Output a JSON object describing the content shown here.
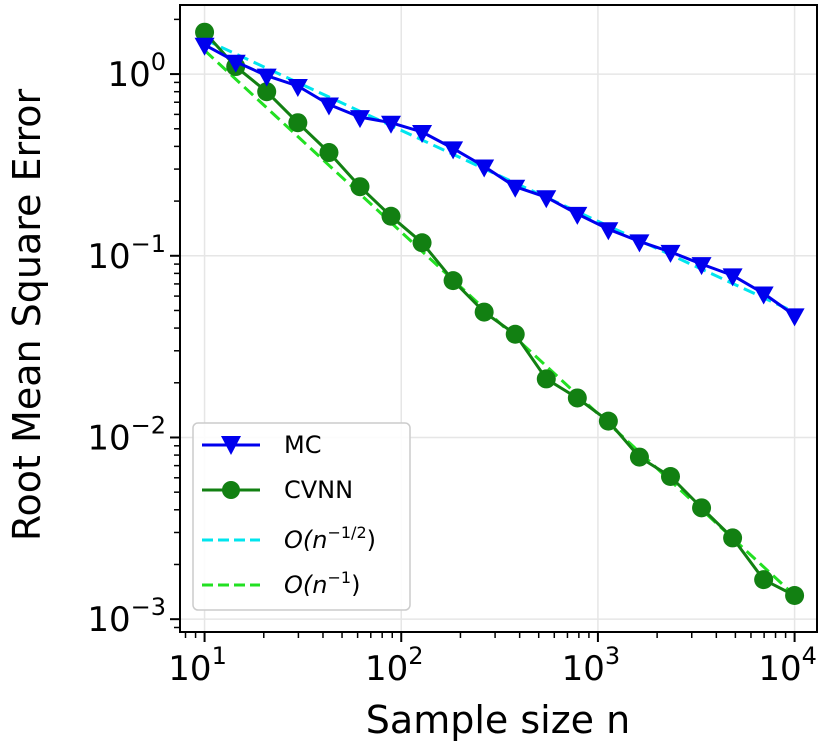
{
  "chart_data": {
    "type": "line",
    "xscale": "log",
    "yscale": "log",
    "xlim": [
      7.5,
      13000
    ],
    "ylim": [
      0.00085,
      2.4
    ],
    "xlabel": "Sample size n",
    "ylabel": "Root Mean Square Error",
    "grid": true,
    "legend_position": "bottom-left",
    "x_ticks": [
      {
        "base": "10",
        "exp": "1",
        "value": 10
      },
      {
        "base": "10",
        "exp": "2",
        "value": 100
      },
      {
        "base": "10",
        "exp": "3",
        "value": 1000
      },
      {
        "base": "10",
        "exp": "4",
        "value": 10000
      }
    ],
    "y_ticks": [
      {
        "base": "10",
        "exp": "0",
        "value": 1
      },
      {
        "base": "10",
        "exp": "−1",
        "value": 0.1
      },
      {
        "base": "10",
        "exp": "−2",
        "value": 0.01
      },
      {
        "base": "10",
        "exp": "−3",
        "value": 0.001
      }
    ],
    "series": [
      {
        "name": "MC",
        "color": "#0000ee",
        "marker": "triangle-down",
        "line": "solid",
        "x": [
          10,
          14.4,
          20.7,
          29.8,
          42.9,
          61.7,
          88.7,
          127.6,
          183.5,
          264,
          379.8,
          546.3,
          785.8,
          1130,
          1626,
          2339,
          3365,
          4840,
          6962,
          10000
        ],
        "y": [
          1.45,
          1.17,
          0.98,
          0.86,
          0.68,
          0.58,
          0.54,
          0.48,
          0.39,
          0.31,
          0.24,
          0.21,
          0.17,
          0.14,
          0.12,
          0.105,
          0.09,
          0.078,
          0.062,
          0.047
        ]
      },
      {
        "name": "CVNN",
        "color": "#128012",
        "marker": "circle",
        "line": "solid",
        "x": [
          10,
          14.4,
          20.7,
          29.8,
          42.9,
          61.7,
          88.7,
          127.6,
          183.5,
          264,
          379.8,
          546.3,
          785.8,
          1130,
          1626,
          2339,
          3365,
          4840,
          6962,
          10000
        ],
        "y": [
          1.7,
          1.1,
          0.8,
          0.54,
          0.37,
          0.24,
          0.165,
          0.118,
          0.073,
          0.049,
          0.037,
          0.021,
          0.0165,
          0.0123,
          0.0078,
          0.0061,
          0.0041,
          0.0028,
          0.00165,
          0.00135
        ]
      },
      {
        "name": "O(n^{−1/2})",
        "color": "#00e5ee",
        "marker": "none",
        "line": "dashed",
        "x": [
          10,
          10000
        ],
        "y": [
          1.55,
          0.049
        ]
      },
      {
        "name": "O(n^{−1})",
        "color": "#22e022",
        "marker": "none",
        "line": "dashed",
        "x": [
          10,
          10000
        ],
        "y": [
          1.35,
          0.00135
        ]
      }
    ],
    "legend": [
      {
        "label": "MC"
      },
      {
        "label": "CVNN"
      },
      {
        "prefix": "O(n",
        "sup": "−1/2",
        "suffix": ")"
      },
      {
        "prefix": "O(n",
        "sup": "−1",
        "suffix": ")"
      }
    ]
  }
}
